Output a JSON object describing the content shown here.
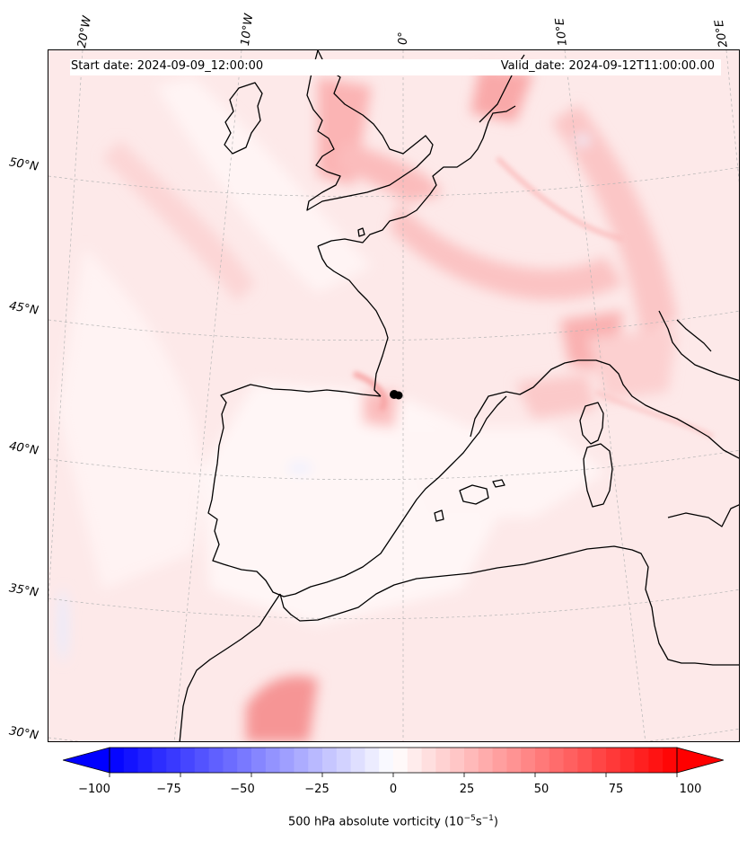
{
  "header": {
    "start_date": "Start date: 2024-09-09_12:00:00",
    "valid_date": "Valid_date: 2024-09-12T11:00:00.00"
  },
  "longitude_labels": [
    "20°W",
    "10°W",
    "0°",
    "10°E",
    "20°E"
  ],
  "latitude_labels": [
    "50°N",
    "45°N",
    "40°N",
    "35°N",
    "30°N"
  ],
  "colorbar": {
    "ticks": [
      "−100",
      "−75",
      "−50",
      "−25",
      "0",
      "25",
      "50",
      "75",
      "100"
    ],
    "label_prefix": "500 hPa absolute vorticity (10",
    "label_exp1": "−5",
    "label_mid": "s",
    "label_exp2": "−1",
    "label_suffix": ")",
    "range": [
      -100,
      100
    ],
    "levels": 40,
    "colormap": "bwr",
    "extend": "both"
  },
  "map": {
    "projection": "conic",
    "land_fill": "none",
    "coastline_color": "#000000",
    "gridlines": "dashed",
    "marker_color": "#000000"
  }
}
